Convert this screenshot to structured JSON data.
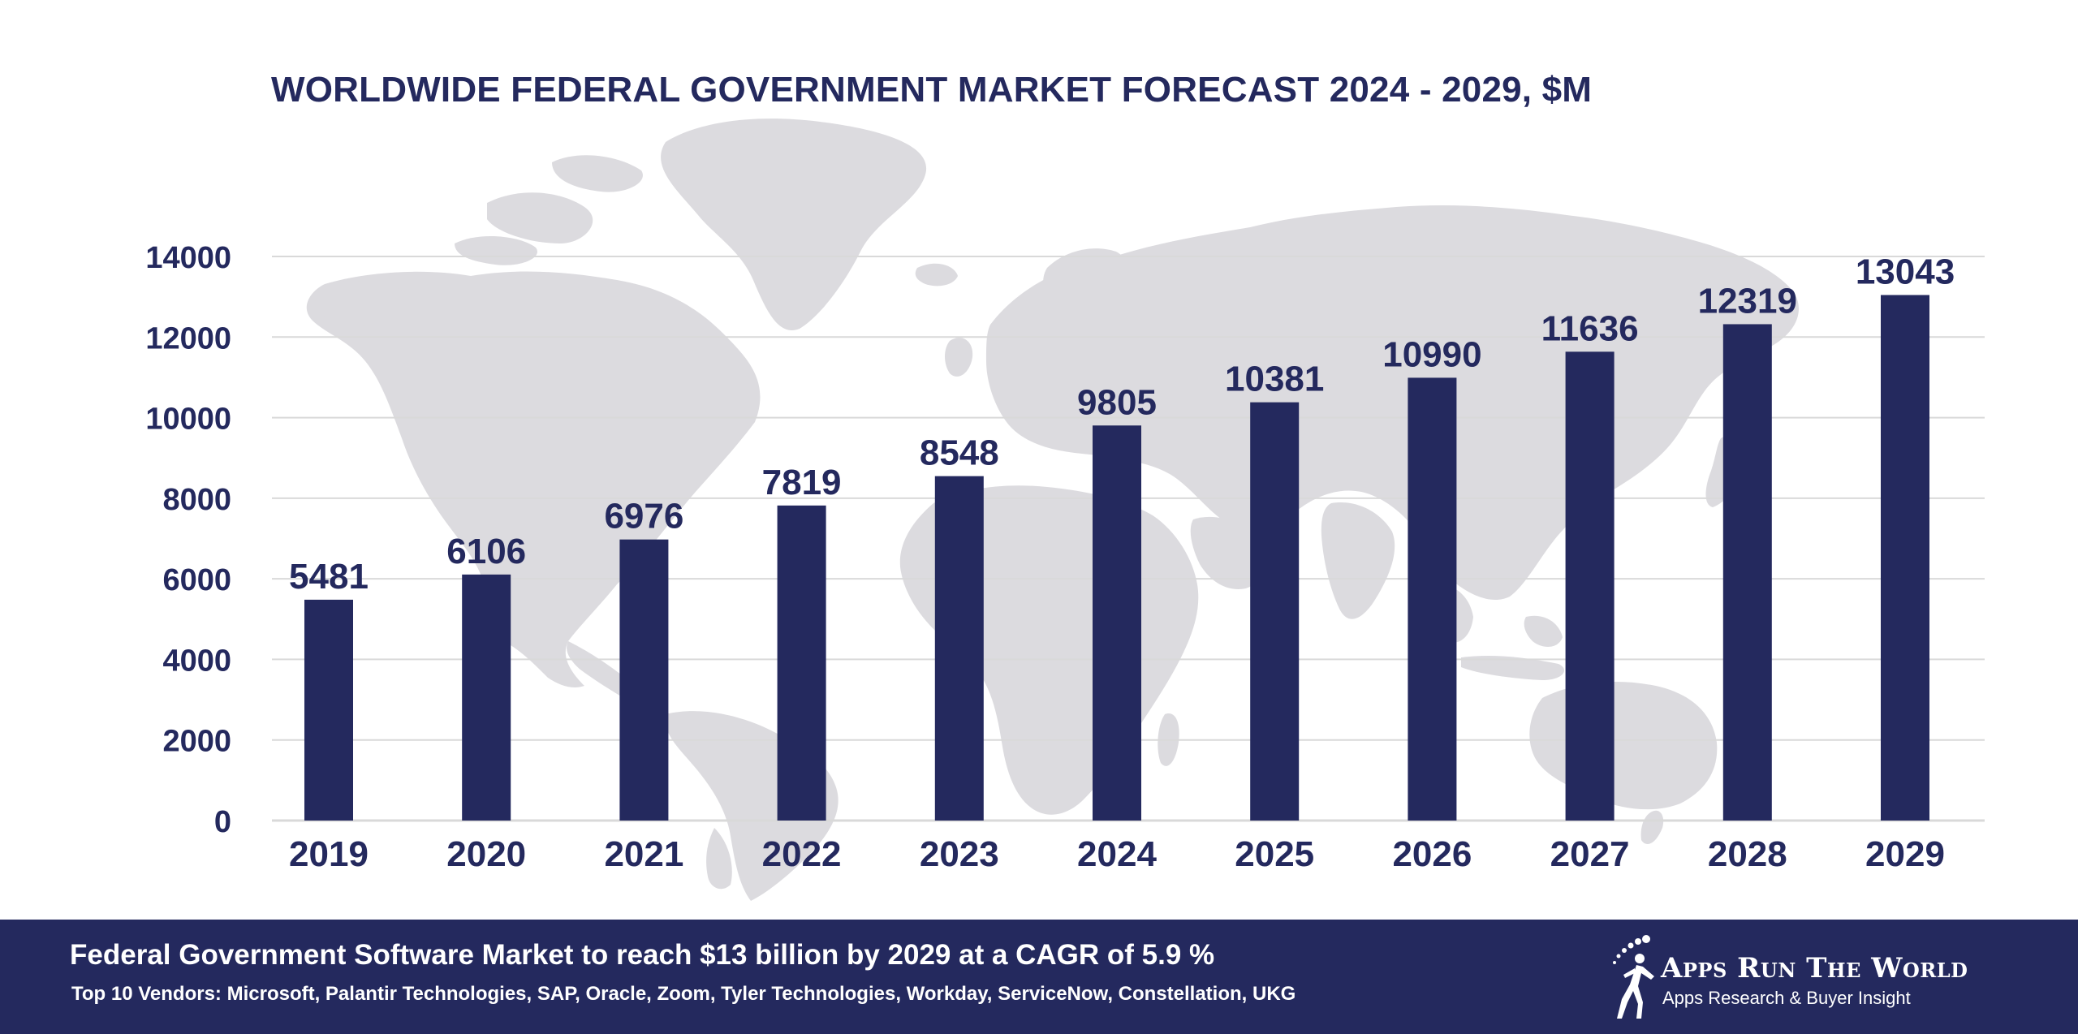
{
  "chart_data": {
    "type": "bar",
    "title": "WORLDWIDE FEDERAL GOVERNMENT MARKET FORECAST 2024 - 2029, $M",
    "categories": [
      "2019",
      "2020",
      "2021",
      "2022",
      "2023",
      "2024",
      "2025",
      "2026",
      "2027",
      "2028",
      "2029"
    ],
    "values": [
      5481,
      6106,
      6976,
      7819,
      8548,
      9805,
      10381,
      10990,
      11636,
      12319,
      13043
    ],
    "yticks": [
      "0",
      "2000",
      "4000",
      "6000",
      "8000",
      "10000",
      "12000",
      "14000"
    ],
    "ylim": [
      0,
      14000
    ],
    "grid": true,
    "bar_color": "#24295e",
    "text_color": "#24295e",
    "grid_color": "#d9d9d9",
    "background_map_color": "#dcdbdf"
  },
  "footer": {
    "headline": "Federal Government Software Market to reach $13 billion by 2029 at a CAGR of 5.9 %",
    "vendors": "Top 10 Vendors: Microsoft, Palantir Technologies, SAP, Oracle, Zoom, Tyler Technologies, Workday, ServiceNow, Constellation, UKG",
    "background_color": "#24295e"
  },
  "logo": {
    "name": "Apps Run The World",
    "tagline": "Apps Research & Buyer Insight"
  }
}
